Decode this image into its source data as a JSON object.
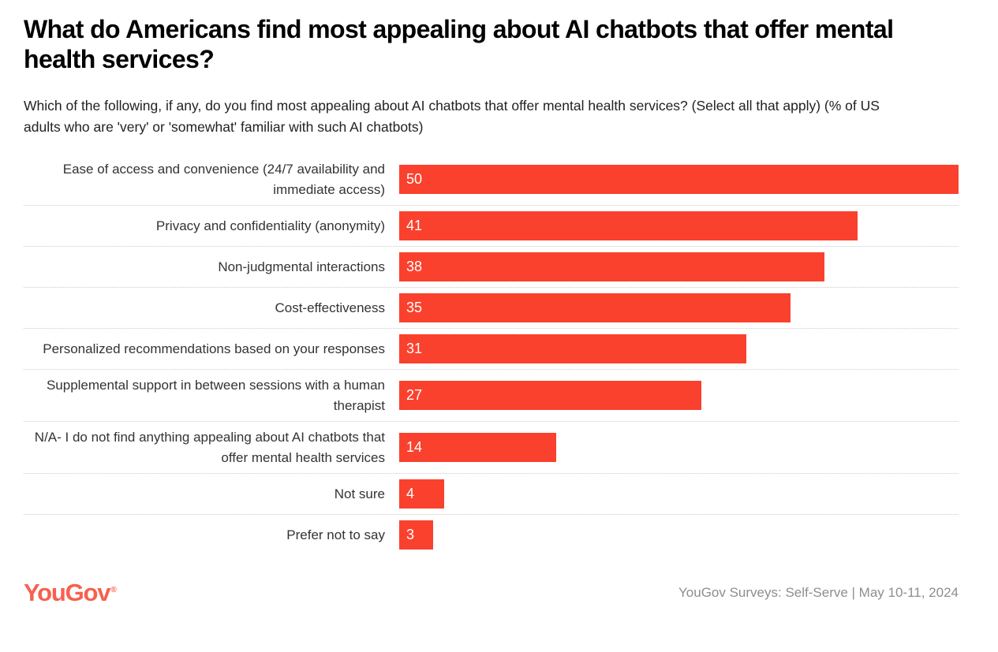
{
  "header": {
    "title": "What do Americans find most appealing about AI chatbots that offer mental health services?",
    "subtitle": "Which of the following, if any, do you find most appealing about AI chatbots that offer mental health services? (Select all that apply) (% of US adults who are 'very' or 'somewhat' familiar with such AI chatbots)"
  },
  "chart_data": {
    "type": "bar",
    "orientation": "horizontal",
    "title": "What do Americans find most appealing about AI chatbots that offer mental health services?",
    "categories": [
      "Ease of access and convenience (24/7 availability and immediate access)",
      "Privacy and confidentiality (anonymity)",
      "Non-judgmental interactions",
      "Cost-effectiveness",
      "Personalized recommendations based on your responses",
      "Supplemental support in between sessions with a human therapist",
      "N/A- I do not find anything appealing about AI chatbots that offer mental health services",
      "Not sure",
      "Prefer not to say"
    ],
    "values": [
      50,
      41,
      38,
      35,
      31,
      27,
      14,
      4,
      3
    ],
    "xlim": [
      0,
      50
    ],
    "bar_color": "#FA412D",
    "value_label_color": "#FFFFFF",
    "value_labels_inside_bar": true,
    "row_separator": "dotted",
    "grid": "off",
    "legend": "none"
  },
  "footer": {
    "logo_text": "YouGov",
    "registered_mark": "®",
    "source": "YouGov Surveys: Self-Serve | May 10-11, 2024"
  },
  "colors": {
    "bar": "#FA412D",
    "logo": "#F7604E",
    "title_text": "#000000",
    "label_text": "#333333",
    "source_text": "#8E8E8E",
    "separator": "#CBCBCB",
    "background": "#FFFFFF"
  }
}
